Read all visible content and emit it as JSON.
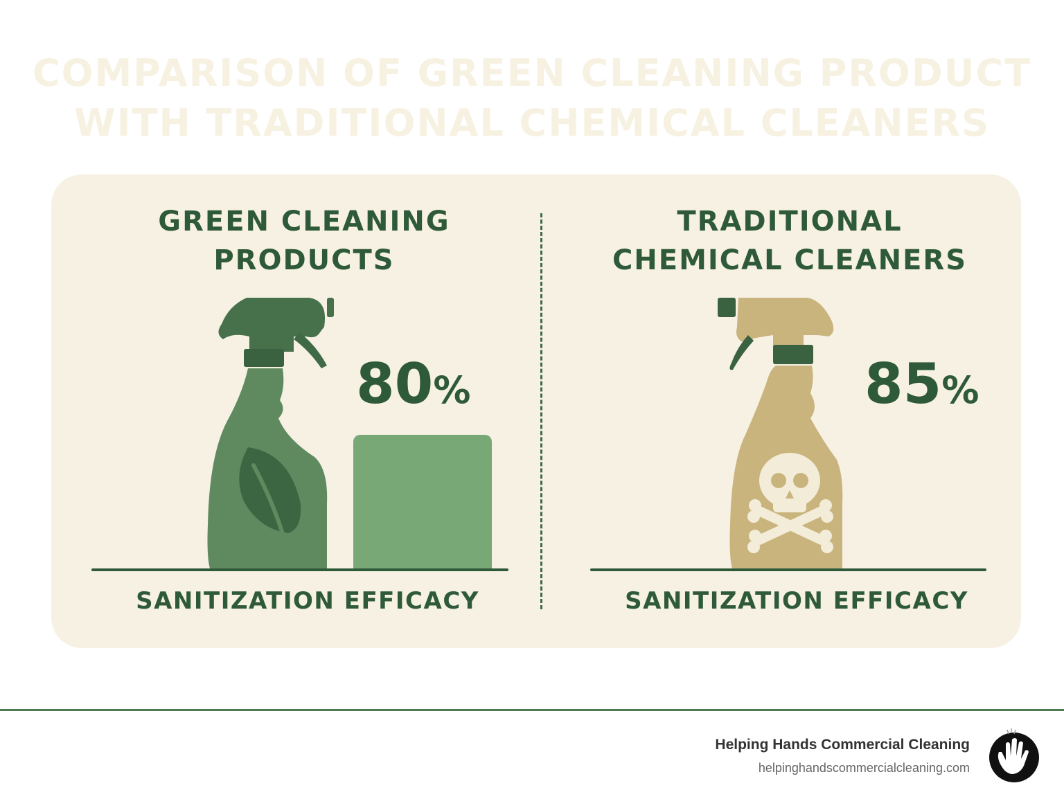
{
  "title": {
    "line1": "COMPARISON OF GREEN CLEANING PRODUCT",
    "line2": "WITH TRADITIONAL CHEMICAL CLEANERS"
  },
  "panels": [
    {
      "heading_line1": "GREEN CLEANING",
      "heading_line2": "PRODUCTS",
      "value": "80",
      "unit": "%",
      "metric": "SANITIZATION EFFICACY",
      "icon": "leaf-icon",
      "bottle_color": "#5f8a5f"
    },
    {
      "heading_line1": "TRADITIONAL",
      "heading_line2": "CHEMICAL CLEANERS",
      "value": "85",
      "unit": "%",
      "metric": "SANITIZATION EFFICACY",
      "icon": "skull-crossbones-icon",
      "bottle_color": "#c9b47d"
    }
  ],
  "footer": {
    "company": "Helping Hands Commercial Cleaning",
    "url": "helpinghandscommercialcleaning.com",
    "logo_icon": "hand-logo-icon"
  },
  "colors": {
    "dark_green": "#2f5a3a",
    "bar_green": "#79a877",
    "card_bg": "#f6f1e3",
    "title_cream": "#f7f1e1"
  }
}
